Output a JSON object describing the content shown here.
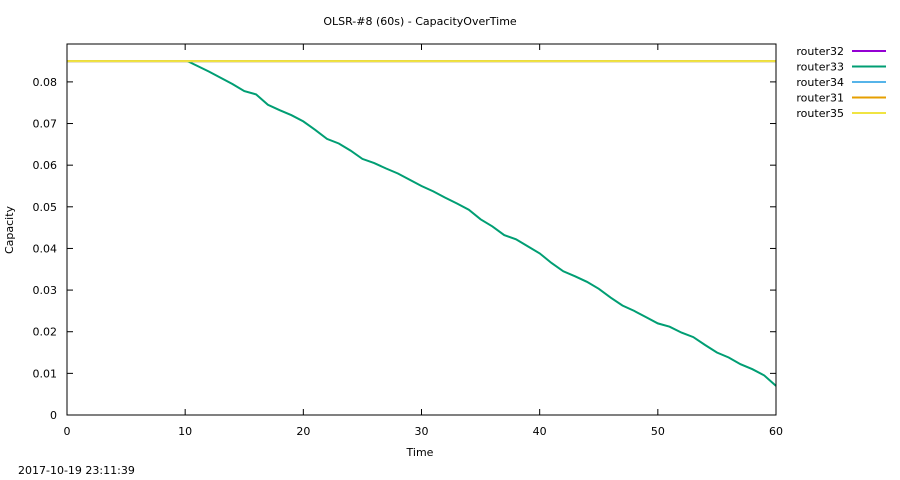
{
  "footer": {
    "timestamp": "2017-10-19 23:11:39"
  },
  "chart_data": {
    "type": "line",
    "title": "OLSR-#8 (60s) - CapacityOverTime",
    "xlabel": "Time",
    "ylabel": "Capacity",
    "xlim": [
      0,
      60
    ],
    "ylim": [
      0,
      0.0891
    ],
    "x_ticks": [
      0,
      10,
      20,
      30,
      40,
      50,
      60
    ],
    "y_ticks": [
      0,
      0.01,
      0.02,
      0.03,
      0.04,
      0.05,
      0.06,
      0.07,
      0.08
    ],
    "y_tick_labels": [
      "0",
      "0.01",
      "0.02",
      "0.03",
      "0.04",
      "0.05",
      "0.06",
      "0.07",
      "0.08"
    ],
    "grid": false,
    "legend_position": "outside-right",
    "series": [
      {
        "name": "router32",
        "color": "#9400d3",
        "x": [
          0,
          60
        ],
        "y": [
          0.085,
          0.085
        ]
      },
      {
        "name": "router33",
        "color": "#009e73",
        "x": [
          10.2,
          12,
          14,
          15,
          16,
          17,
          18,
          19,
          20,
          21,
          22,
          23,
          24,
          25,
          26,
          27,
          28,
          29,
          30,
          31,
          32,
          33,
          34,
          35,
          36,
          37,
          38,
          39,
          40,
          41,
          42,
          43,
          44,
          45,
          46,
          47,
          48,
          49,
          50,
          51,
          52,
          53,
          54,
          55,
          56,
          57,
          58,
          59,
          60
        ],
        "y": [
          0.085,
          0.0825,
          0.0795,
          0.0778,
          0.077,
          0.0745,
          0.0732,
          0.072,
          0.0705,
          0.0685,
          0.0663,
          0.0652,
          0.0635,
          0.0615,
          0.0605,
          0.0592,
          0.058,
          0.0565,
          0.055,
          0.0537,
          0.0522,
          0.0508,
          0.0493,
          0.047,
          0.0453,
          0.0432,
          0.0422,
          0.0405,
          0.0388,
          0.0365,
          0.0345,
          0.0333,
          0.032,
          0.0303,
          0.0282,
          0.0263,
          0.025,
          0.0235,
          0.022,
          0.0212,
          0.0198,
          0.0187,
          0.0168,
          0.015,
          0.0138,
          0.0122,
          0.011,
          0.0095,
          0.007
        ]
      },
      {
        "name": "router34",
        "color": "#56b4e9",
        "x": [
          0,
          60
        ],
        "y": [
          0.085,
          0.085
        ]
      },
      {
        "name": "router31",
        "color": "#e69f00",
        "x": [
          0,
          60
        ],
        "y": [
          0.085,
          0.085
        ]
      },
      {
        "name": "router35",
        "color": "#f0e442",
        "x": [
          0,
          60
        ],
        "y": [
          0.085,
          0.085
        ]
      }
    ]
  }
}
